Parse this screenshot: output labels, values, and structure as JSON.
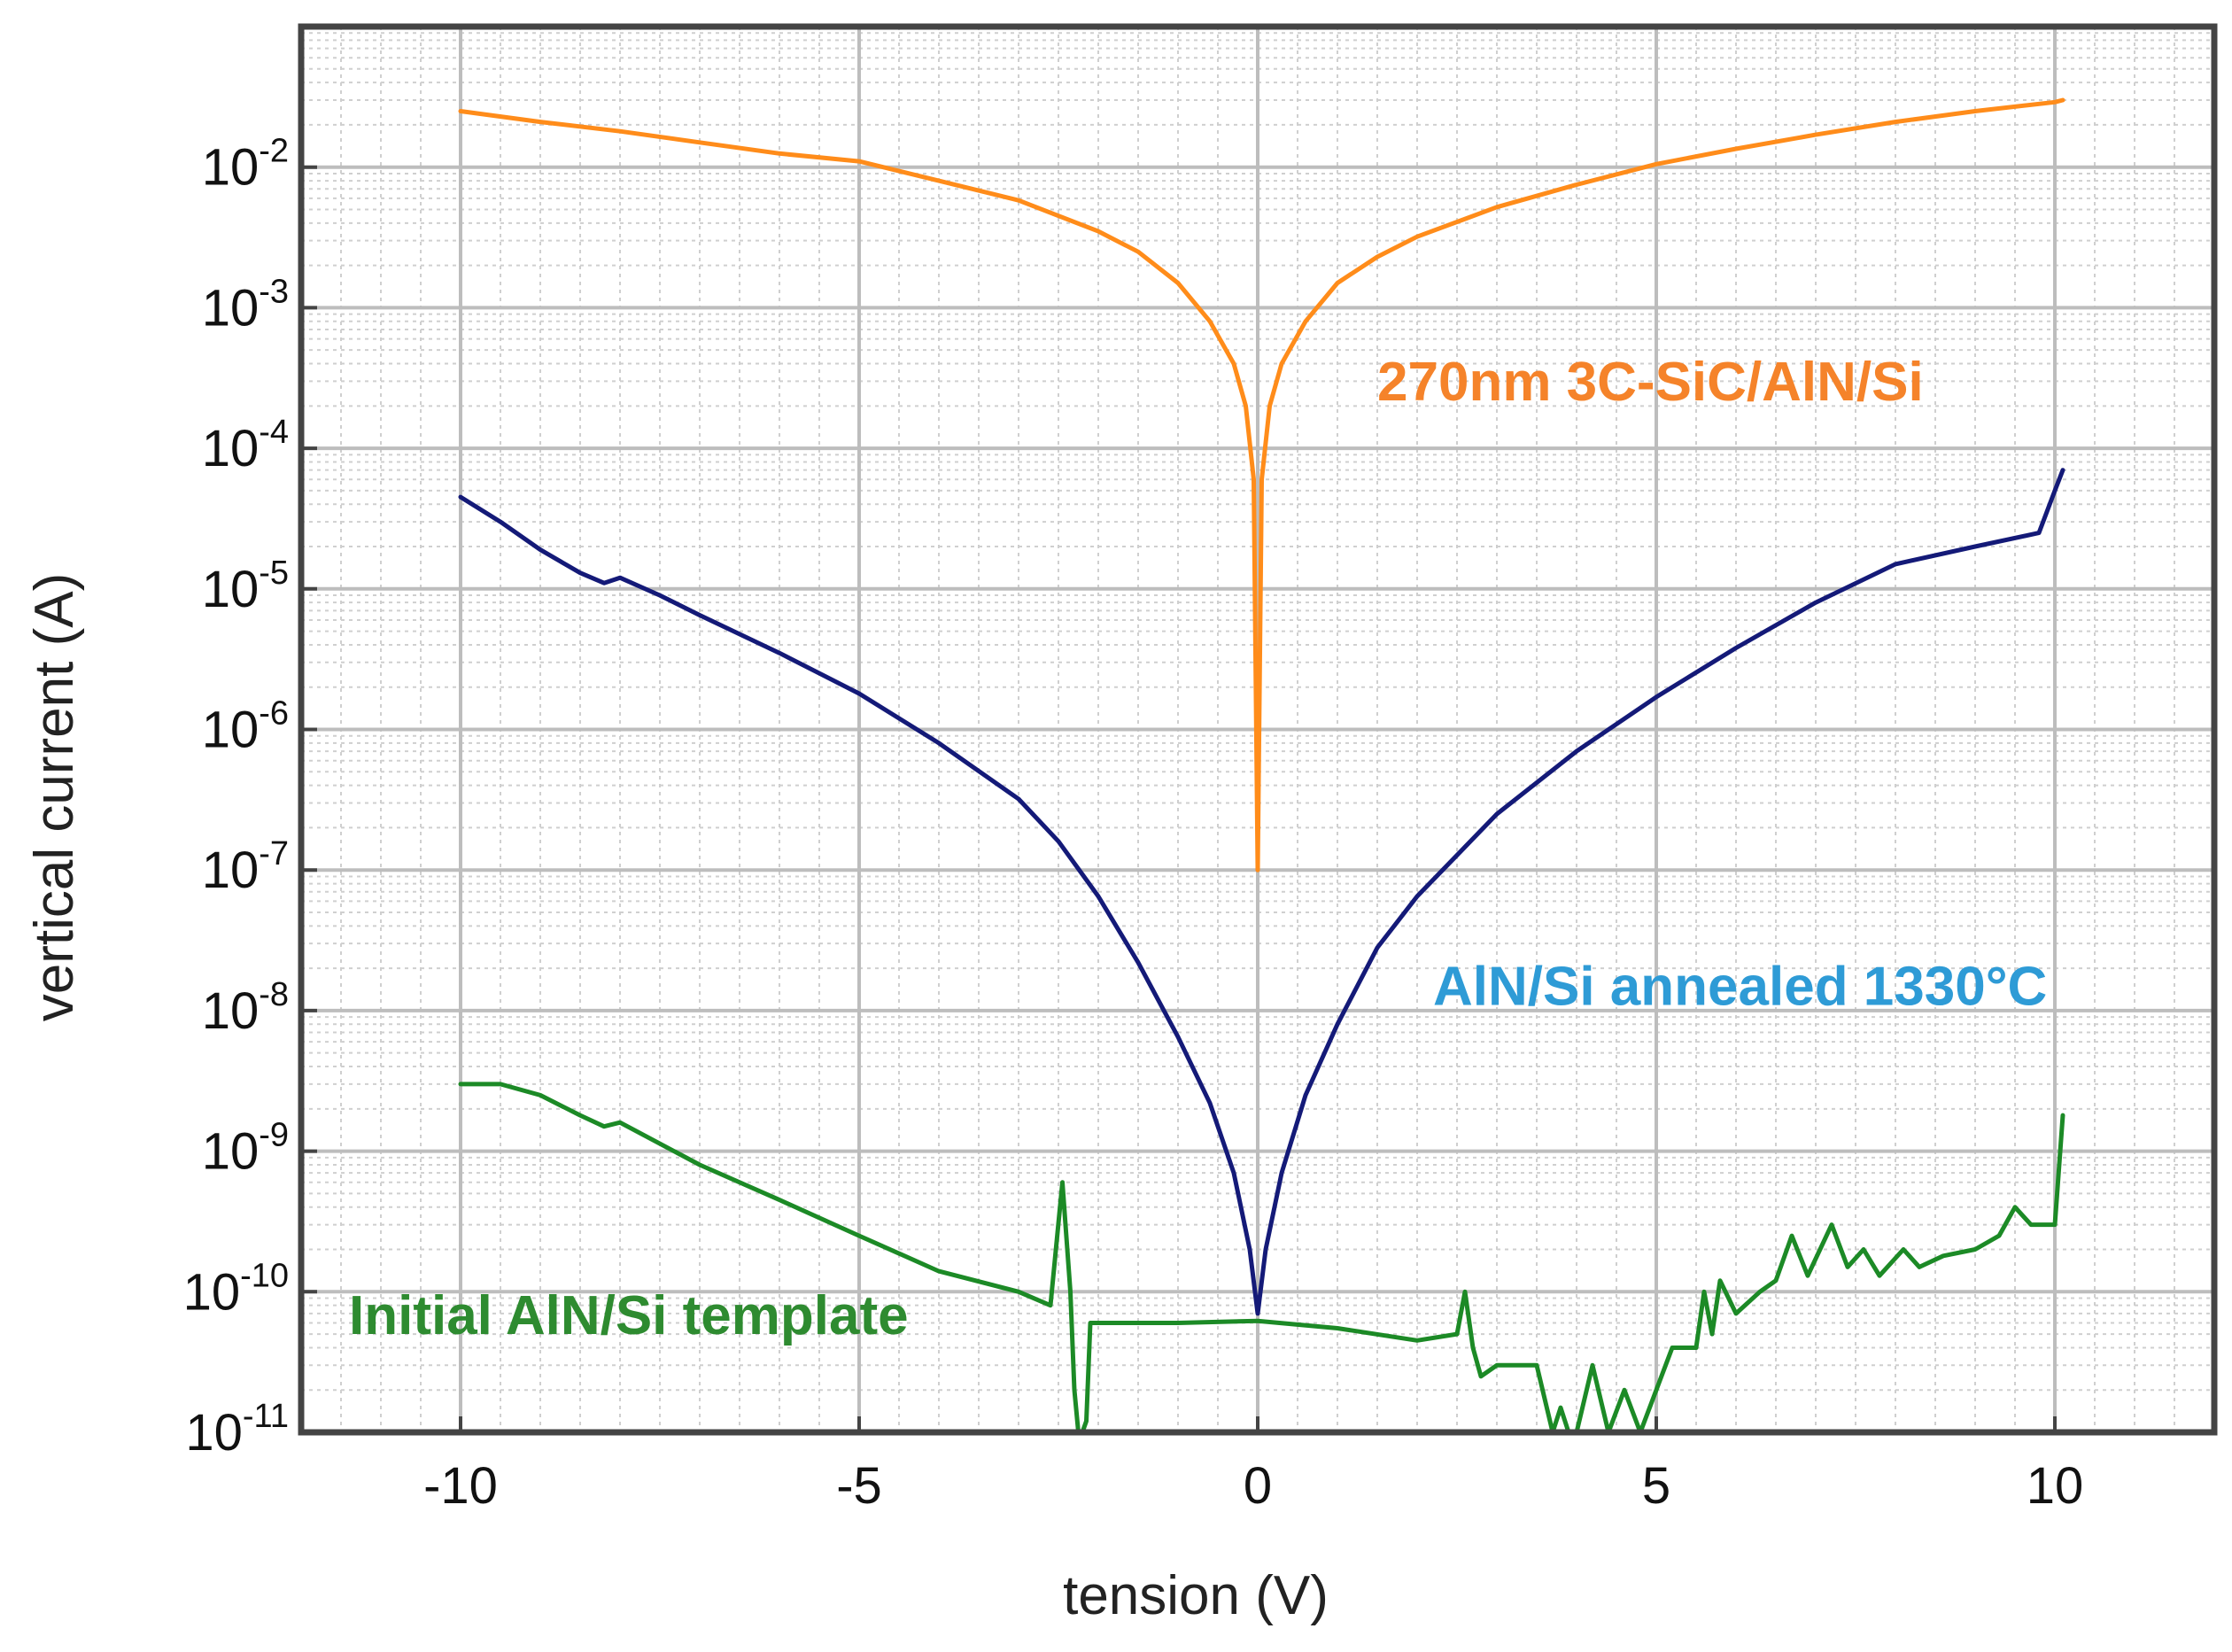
{
  "chart_data": {
    "type": "line",
    "title": "",
    "xlabel": "tension (V)",
    "ylabel": "vertical current (A)",
    "xscale": "linear",
    "yscale": "log",
    "xlim": [
      -12,
      12
    ],
    "ylim": [
      1e-11,
      0.1
    ],
    "grid": true,
    "minor_grid": true,
    "x_ticks": [
      -10,
      -5,
      0,
      5,
      10
    ],
    "x_tick_labels": [
      "-10",
      "-5",
      "0",
      "5",
      "10"
    ],
    "y_ticks": [
      {
        "value": 0.01,
        "base": "10",
        "exp": "-2"
      },
      {
        "value": 0.001,
        "base": "10",
        "exp": "-3"
      },
      {
        "value": 0.0001,
        "base": "10",
        "exp": "-4"
      },
      {
        "value": 1e-05,
        "base": "10",
        "exp": "-5"
      },
      {
        "value": 1e-06,
        "base": "10",
        "exp": "-6"
      },
      {
        "value": 1e-07,
        "base": "10",
        "exp": "-7"
      },
      {
        "value": 1e-08,
        "base": "10",
        "exp": "-8"
      },
      {
        "value": 1e-09,
        "base": "10",
        "exp": "-9"
      },
      {
        "value": 1e-10,
        "base": "10",
        "exp": "-10"
      },
      {
        "value": 1e-11,
        "base": "10",
        "exp": "-11"
      }
    ],
    "series": [
      {
        "name": "270nm 3C-SiC/AlN/Si",
        "color": "#ff8c1a",
        "x": [
          -10,
          -9,
          -8,
          -7,
          -6,
          -5,
          -4,
          -3,
          -2,
          -1.5,
          -1,
          -0.6,
          -0.3,
          -0.15,
          -0.05,
          0,
          0.05,
          0.15,
          0.3,
          0.6,
          1,
          1.5,
          2,
          3,
          4,
          5,
          6,
          7,
          8,
          9,
          10,
          10.1
        ],
        "y": [
          0.025,
          0.021,
          0.018,
          0.015,
          0.0125,
          0.011,
          0.008,
          0.0058,
          0.0035,
          0.0025,
          0.0015,
          0.0008,
          0.0004,
          0.0002,
          6e-05,
          1e-07,
          6e-05,
          0.0002,
          0.0004,
          0.0008,
          0.0015,
          0.0023,
          0.0032,
          0.0052,
          0.0075,
          0.0105,
          0.0135,
          0.017,
          0.021,
          0.025,
          0.029,
          0.03
        ]
      },
      {
        "name": "AlN/Si annealed 1330°C",
        "color": "#141a78",
        "x": [
          -10,
          -9.5,
          -9,
          -8.5,
          -8.2,
          -8,
          -7.5,
          -7,
          -6,
          -5,
          -4,
          -3,
          -2.5,
          -2,
          -1.5,
          -1,
          -0.6,
          -0.3,
          -0.1,
          0,
          0.1,
          0.3,
          0.6,
          1,
          1.5,
          2,
          3,
          4,
          5,
          6,
          7,
          8,
          9,
          9.8,
          10,
          10.1
        ],
        "y": [
          4.5e-05,
          3e-05,
          1.9e-05,
          1.3e-05,
          1.1e-05,
          1.2e-05,
          9e-06,
          6.5e-06,
          3.5e-06,
          1.8e-06,
          8e-07,
          3.2e-07,
          1.6e-07,
          6.5e-08,
          2.2e-08,
          6.5e-09,
          2.2e-09,
          7e-10,
          2e-10,
          7e-11,
          2e-10,
          7e-10,
          2.5e-09,
          8e-09,
          2.8e-08,
          6.5e-08,
          2.5e-07,
          7e-07,
          1.7e-06,
          3.8e-06,
          8e-06,
          1.5e-05,
          2e-05,
          2.5e-05,
          5e-05,
          7e-05
        ]
      },
      {
        "name": "Initial AlN/Si template",
        "color": "#1c8a26",
        "x": [
          -10,
          -9.5,
          -9,
          -8.5,
          -8.2,
          -8,
          -7,
          -6,
          -5,
          -4,
          -3,
          -2.6,
          -2.45,
          -2.35,
          -2.3,
          -2.25,
          -2.2,
          -2.15,
          -2.1,
          -1,
          0,
          1,
          2,
          2.5,
          2.6,
          2.7,
          2.8,
          3,
          3.5,
          3.7,
          3.8,
          3.9,
          4,
          4.2,
          4.4,
          4.6,
          4.8,
          5,
          5.2,
          5.5,
          5.6,
          5.7,
          5.8,
          6,
          6.3,
          6.5,
          6.7,
          6.9,
          7.2,
          7.4,
          7.6,
          7.8,
          8.1,
          8.3,
          8.6,
          9,
          9.3,
          9.5,
          9.7,
          9.8,
          10,
          10.1
        ],
        "y": [
          3e-09,
          3e-09,
          2.5e-09,
          1.8e-09,
          1.5e-09,
          1.6e-09,
          8e-10,
          4.5e-10,
          2.5e-10,
          1.4e-10,
          1e-10,
          8e-11,
          6e-10,
          1e-10,
          2e-11,
          1e-11,
          1e-11,
          1.2e-11,
          6e-11,
          6e-11,
          6.2e-11,
          5.5e-11,
          4.5e-11,
          5e-11,
          1e-10,
          4e-11,
          2.5e-11,
          3e-11,
          3e-11,
          1e-11,
          1.5e-11,
          1e-11,
          1e-11,
          3e-11,
          1e-11,
          2e-11,
          1e-11,
          2e-11,
          4e-11,
          4e-11,
          1e-10,
          5e-11,
          1.2e-10,
          7e-11,
          1e-10,
          1.2e-10,
          2.5e-10,
          1.3e-10,
          3e-10,
          1.5e-10,
          2e-10,
          1.3e-10,
          2e-10,
          1.5e-10,
          1.8e-10,
          2e-10,
          2.5e-10,
          4e-10,
          3e-10,
          3e-10,
          3e-10,
          1.8e-09
        ]
      }
    ],
    "annotations": [
      {
        "text": "270nm 3C-SiC/AlN/Si",
        "color": "#f5832a",
        "x": 1.5,
        "y": 0.00022
      },
      {
        "text": "AlN/Si annealed 1330°C",
        "color": "#2e9bd6",
        "x": 2.2,
        "y": 1.1e-08
      },
      {
        "text": "Initial AlN/Si template",
        "color": "#2e8b30",
        "x": -11.4,
        "y": 5e-11
      }
    ]
  }
}
